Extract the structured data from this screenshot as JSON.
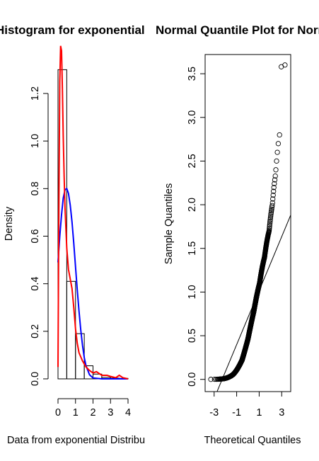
{
  "chart_data": [
    {
      "type": "bar",
      "title": "Histogram for exponential",
      "xlabel": "Data from exponential Distribu",
      "ylabel": "Density",
      "xlim": [
        0,
        4
      ],
      "ylim": [
        0,
        1.35
      ],
      "xticks": [
        "0",
        "1",
        "2",
        "3",
        "4"
      ],
      "yticks": [
        "0.0",
        "0.2",
        "0.4",
        "0.6",
        "0.8",
        "1.0",
        "1.2"
      ],
      "bins": [
        {
          "x0": 0.0,
          "x1": 0.5,
          "density": 1.3
        },
        {
          "x0": 0.5,
          "x1": 1.0,
          "density": 0.41
        },
        {
          "x0": 1.0,
          "x1": 1.5,
          "density": 0.19
        },
        {
          "x0": 1.5,
          "x1": 2.0,
          "density": 0.055
        },
        {
          "x0": 2.0,
          "x1": 2.5,
          "density": 0.02
        },
        {
          "x0": 2.5,
          "x1": 3.0,
          "density": 0.006
        },
        {
          "x0": 3.0,
          "x1": 3.5,
          "density": 0.003
        },
        {
          "x0": 3.5,
          "x1": 4.0,
          "density": 0.002
        }
      ],
      "series": [
        {
          "color": "#0000ff",
          "x": [
            0.0,
            0.1,
            0.2,
            0.3,
            0.4,
            0.5,
            0.6,
            0.7,
            0.8,
            0.9,
            1.0,
            1.1,
            1.2,
            1.3,
            1.4,
            1.5,
            1.6,
            1.8,
            2.0,
            2.5,
            3.0,
            3.5,
            4.0
          ],
          "y": [
            0.49,
            0.6,
            0.69,
            0.76,
            0.795,
            0.8,
            0.78,
            0.73,
            0.66,
            0.57,
            0.47,
            0.375,
            0.285,
            0.205,
            0.14,
            0.09,
            0.055,
            0.017,
            0.004,
            0.0,
            0.0,
            0.0,
            0.0
          ]
        },
        {
          "color": "#ff0000",
          "x": [
            0.0,
            0.05,
            0.1,
            0.15,
            0.2,
            0.25,
            0.3,
            0.35,
            0.4,
            0.5,
            0.6,
            0.7,
            0.8,
            0.9,
            1.0,
            1.1,
            1.2,
            1.4,
            1.6,
            1.8,
            2.0,
            2.2,
            2.5,
            2.8,
            3.0,
            3.3,
            3.5,
            3.7,
            4.0
          ],
          "y": [
            0.05,
            0.7,
            1.25,
            1.4,
            1.38,
            1.22,
            1.02,
            0.85,
            0.72,
            0.55,
            0.46,
            0.42,
            0.38,
            0.3,
            0.21,
            0.15,
            0.11,
            0.075,
            0.05,
            0.035,
            0.025,
            0.03,
            0.015,
            0.015,
            0.01,
            0.005,
            0.015,
            0.005,
            0.0
          ]
        }
      ]
    },
    {
      "type": "scatter",
      "title": "Normal Quantile Plot for Norm",
      "xlabel": "Theoretical Quantiles",
      "ylabel": "Sample Quantiles",
      "xlim": [
        -3.8,
        3.8
      ],
      "ylim": [
        -0.14,
        3.72
      ],
      "xticks": [
        "-3",
        "-1",
        "1",
        "3"
      ],
      "xtick_values": [
        -3,
        -1,
        1,
        3
      ],
      "yticks": [
        "0.0",
        "0.5",
        "1.0",
        "1.5",
        "2.0",
        "2.5",
        "3.0",
        "3.5"
      ],
      "reference_line": {
        "intercept": 0.707,
        "slope": 0.309
      },
      "sample_size": 1000
    }
  ]
}
